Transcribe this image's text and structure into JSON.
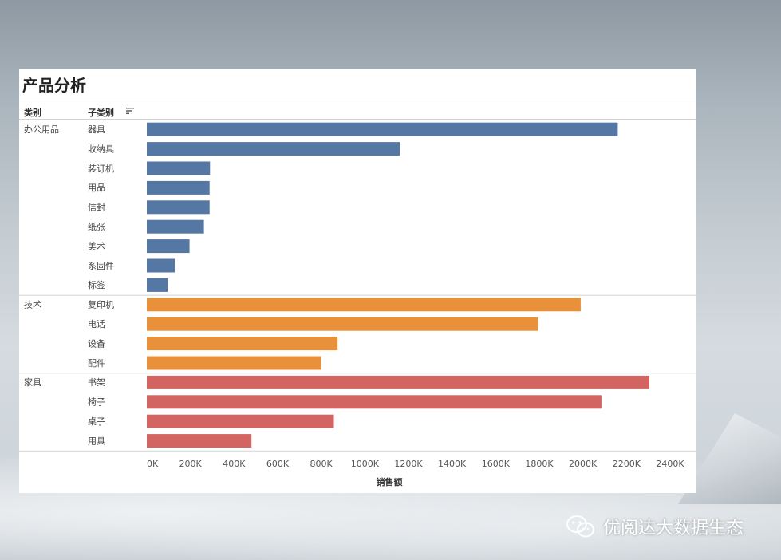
{
  "title": "产品分析",
  "headers": {
    "category": "类别",
    "subcategory": "子类别"
  },
  "watermark": "优阅达大数据生态",
  "colors": {
    "办公用品": "#5477a3",
    "技术": "#e8913a",
    "家具": "#d26462"
  },
  "chart_data": {
    "type": "bar",
    "orientation": "horizontal",
    "xlabel": "销售额",
    "xlim": [
      0,
      2400000
    ],
    "ticks": [
      "0K",
      "200K",
      "400K",
      "600K",
      "800K",
      "1000K",
      "1200K",
      "1400K",
      "1600K",
      "1800K",
      "2000K",
      "2200K",
      "2400K"
    ],
    "groups": [
      {
        "name": "办公用品",
        "items": [
          {
            "label": "器具",
            "value": 2160000
          },
          {
            "label": "收纳具",
            "value": 1160000
          },
          {
            "label": "装订机",
            "value": 290000
          },
          {
            "label": "用品",
            "value": 288000
          },
          {
            "label": "信封",
            "value": 288000
          },
          {
            "label": "纸张",
            "value": 262000
          },
          {
            "label": "美术",
            "value": 196000
          },
          {
            "label": "系固件",
            "value": 128000
          },
          {
            "label": "标签",
            "value": 96000
          }
        ]
      },
      {
        "name": "技术",
        "items": [
          {
            "label": "复印机",
            "value": 1990000
          },
          {
            "label": "电话",
            "value": 1795000
          },
          {
            "label": "设备",
            "value": 875000
          },
          {
            "label": "配件",
            "value": 800000
          }
        ]
      },
      {
        "name": "家具",
        "items": [
          {
            "label": "书架",
            "value": 2305000
          },
          {
            "label": "椅子",
            "value": 2085000
          },
          {
            "label": "桌子",
            "value": 858000
          },
          {
            "label": "用具",
            "value": 480000
          }
        ]
      }
    ]
  }
}
